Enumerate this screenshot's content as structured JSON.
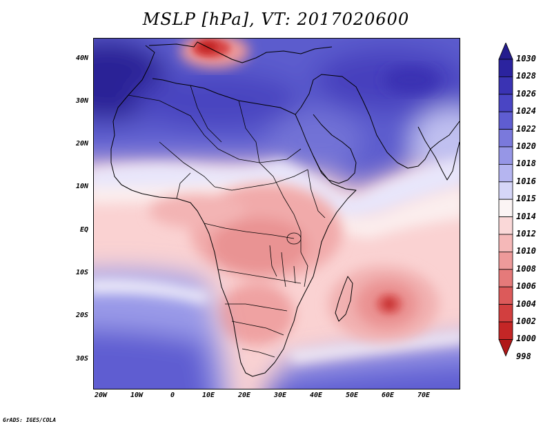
{
  "title": "MSLP [hPa], VT: 2017020600",
  "credit": "GrADS: IGES/COLA",
  "lat_labels": [
    "40N",
    "30N",
    "20N",
    "10N",
    "EQ",
    "10S",
    "20S",
    "30S"
  ],
  "lon_labels": [
    "20W",
    "10W",
    "0",
    "10E",
    "20E",
    "30E",
    "40E",
    "50E",
    "60E",
    "70E"
  ],
  "colorbar": {
    "labels": [
      "1030",
      "1028",
      "1026",
      "1024",
      "1022",
      "1020",
      "1018",
      "1016",
      "1015",
      "1014",
      "1012",
      "1010",
      "1008",
      "1006",
      "1004",
      "1002",
      "1000",
      "998"
    ],
    "colors": [
      "#241c8e",
      "#2b239f",
      "#3a33b3",
      "#4a45c4",
      "#5f5dd1",
      "#7a79dc",
      "#9696e6",
      "#b5b5f0",
      "#d6d6f8",
      "#fbf4f4",
      "#fad8d8",
      "#f5b8b8",
      "#ee9a9a",
      "#e57a7a",
      "#dc5a5a",
      "#d23f3f",
      "#c42626",
      "#b01818"
    ]
  },
  "map": {
    "region": "Africa",
    "features": [
      "High pressure over Mediterranean and Middle East",
      "Low pressure cell near Mauritius (~60E, 17S)",
      "Low pressure over Italy"
    ]
  }
}
